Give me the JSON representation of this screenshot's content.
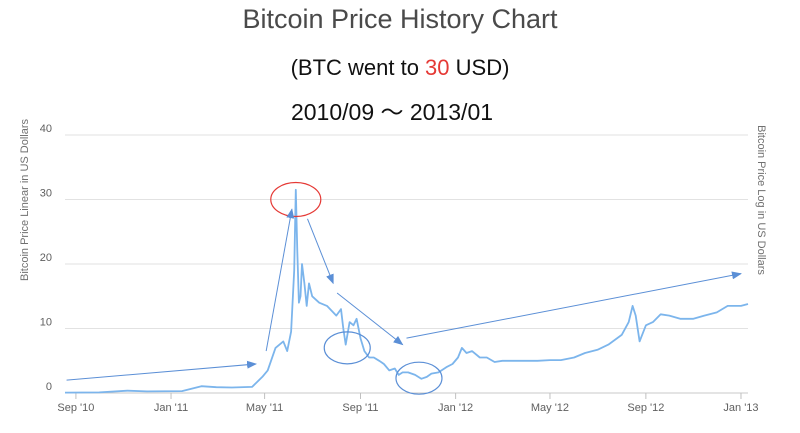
{
  "chart_data": {
    "type": "line",
    "title": "Bitcoin Price History Chart",
    "subtitle_prefix": "(BTC went to ",
    "subtitle_highlight": "30",
    "subtitle_suffix": " USD)",
    "date_range": "2010/09 ～ 2013/01",
    "ylabel_left": "Bitcoin Price Linear in US Dollars",
    "ylabel_right": "Bitcoin Price Log in US Dollars",
    "y_ticks": [
      0,
      10,
      20,
      30,
      40
    ],
    "ylim": [
      0,
      40
    ],
    "xlim": [
      "2010-08-18",
      "2013-01-10"
    ],
    "x_ticks": [
      {
        "label": "Sep '10",
        "date": "2010-09-01"
      },
      {
        "label": "Jan '11",
        "date": "2011-01-01"
      },
      {
        "label": "May '11",
        "date": "2011-05-01"
      },
      {
        "label": "Sep '11",
        "date": "2011-09-01"
      },
      {
        "label": "Jan '12",
        "date": "2012-01-01"
      },
      {
        "label": "May '12",
        "date": "2012-05-01"
      },
      {
        "label": "Sep '12",
        "date": "2012-09-01"
      },
      {
        "label": "Jan '13",
        "date": "2013-01-01"
      }
    ],
    "grid": true,
    "colors": {
      "line": "#7cb5ec",
      "annotation_arrow": "#5b8fd6",
      "circle_red": "#e53935",
      "circle_blue": "#5b8fd6",
      "highlight": "#e53935"
    },
    "series": [
      {
        "x": [
          "2010-08-18",
          "2010-10-01",
          "2010-11-06",
          "2010-12-01",
          "2011-01-15",
          "2011-02-09",
          "2011-02-28",
          "2011-03-20",
          "2011-04-15",
          "2011-04-28",
          "2011-05-05",
          "2011-05-15",
          "2011-05-25",
          "2011-05-30",
          "2011-06-04",
          "2011-06-08",
          "2011-06-10",
          "2011-06-12",
          "2011-06-14",
          "2011-06-16",
          "2011-06-18",
          "2011-06-21",
          "2011-06-24",
          "2011-06-27",
          "2011-07-01",
          "2011-07-10",
          "2011-07-20",
          "2011-08-01",
          "2011-08-07",
          "2011-08-10",
          "2011-08-13",
          "2011-08-18",
          "2011-08-23",
          "2011-08-27",
          "2011-09-01",
          "2011-09-06",
          "2011-09-12",
          "2011-09-18",
          "2011-09-25",
          "2011-10-01",
          "2011-10-08",
          "2011-10-15",
          "2011-10-20",
          "2011-10-25",
          "2011-11-01",
          "2011-11-10",
          "2011-11-18",
          "2011-11-25",
          "2011-12-01",
          "2011-12-10",
          "2011-12-20",
          "2011-12-28",
          "2012-01-04",
          "2012-01-09",
          "2012-01-15",
          "2012-01-22",
          "2012-02-01",
          "2012-02-10",
          "2012-02-20",
          "2012-03-01",
          "2012-03-15",
          "2012-04-01",
          "2012-04-15",
          "2012-05-01",
          "2012-05-15",
          "2012-06-01",
          "2012-06-15",
          "2012-07-01",
          "2012-07-15",
          "2012-08-01",
          "2012-08-10",
          "2012-08-15",
          "2012-08-19",
          "2012-08-24",
          "2012-09-01",
          "2012-09-10",
          "2012-09-20",
          "2012-10-01",
          "2012-10-15",
          "2012-11-01",
          "2012-11-15",
          "2012-12-01",
          "2012-12-15",
          "2013-01-01",
          "2013-01-10"
        ],
        "y": [
          0.06,
          0.1,
          0.35,
          0.25,
          0.3,
          1.05,
          0.9,
          0.85,
          0.95,
          2.5,
          3.5,
          7,
          8,
          6.5,
          9.5,
          19,
          31.5,
          22,
          14,
          15,
          20,
          17,
          13.5,
          17,
          15,
          14,
          13.5,
          12,
          13,
          10,
          7.5,
          11,
          10.5,
          11.5,
          8.5,
          6.5,
          5.5,
          5.5,
          5,
          4.5,
          3.5,
          3.8,
          2.8,
          3.2,
          3.2,
          2.8,
          2.2,
          2.5,
          3,
          3.2,
          4,
          4.5,
          5.5,
          7,
          6.2,
          6.5,
          5.5,
          5.5,
          4.8,
          5,
          5,
          5,
          5,
          5.1,
          5.1,
          5.5,
          6.2,
          6.7,
          7.5,
          9,
          11,
          13.5,
          12,
          8,
          10.5,
          11,
          12.2,
          12,
          11.5,
          11.5,
          12,
          12.5,
          13.5,
          13.5,
          13.8
        ]
      }
    ],
    "annotations": [
      {
        "type": "circle",
        "color": "red",
        "center": {
          "date": "2011-06-10",
          "value": 30
        }
      },
      {
        "type": "circle",
        "color": "blue",
        "center": {
          "date": "2011-08-15",
          "value": 7
        }
      },
      {
        "type": "circle",
        "color": "blue",
        "center": {
          "date": "2011-11-15",
          "value": 2.3
        }
      },
      {
        "type": "arrow",
        "from": {
          "date": "2010-08-20",
          "value": 2
        },
        "to": {
          "date": "2011-04-20",
          "value": 4.5
        }
      },
      {
        "type": "arrow",
        "from": {
          "date": "2011-05-03",
          "value": 6.5
        },
        "to": {
          "date": "2011-06-05",
          "value": 28.5
        }
      },
      {
        "type": "arrow",
        "from": {
          "date": "2011-06-25",
          "value": 27
        },
        "to": {
          "date": "2011-07-28",
          "value": 17
        }
      },
      {
        "type": "arrow",
        "from": {
          "date": "2011-08-02",
          "value": 15.5
        },
        "to": {
          "date": "2011-10-25",
          "value": 7.5
        }
      },
      {
        "type": "arrow",
        "from": {
          "date": "2011-10-30",
          "value": 8.5
        },
        "to": {
          "date": "2013-01-01",
          "value": 18.5
        }
      }
    ]
  }
}
